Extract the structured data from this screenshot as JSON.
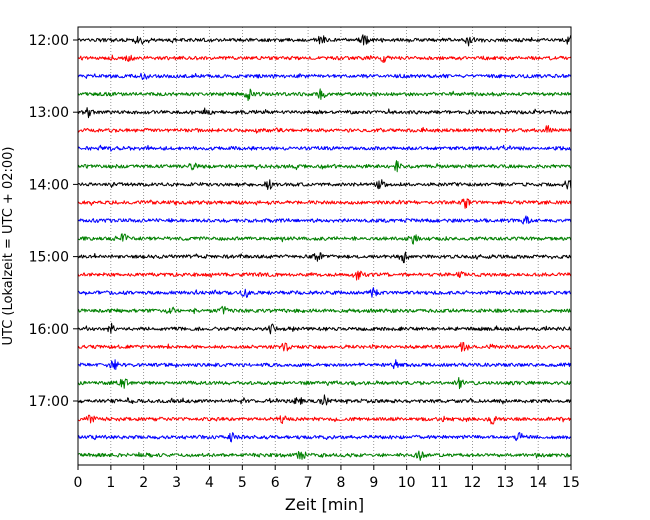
{
  "chart_data": {
    "type": "line",
    "xlabel": "Zeit  [min]",
    "ylabel": "UTC (Lokalzeit = UTC + 02:00)",
    "xlim": [
      0,
      15
    ],
    "x_ticks": [
      0,
      1,
      2,
      3,
      4,
      5,
      6,
      7,
      8,
      9,
      10,
      11,
      12,
      13,
      14,
      15
    ],
    "x_tick_labels": [
      "0",
      "1",
      "2",
      "3",
      "4",
      "5",
      "6",
      "7",
      "8",
      "9",
      "10",
      "11",
      "12",
      "13",
      "14",
      "15"
    ],
    "y_tick_labels": [
      "12:00",
      "13:00",
      "14:00",
      "15:00",
      "16:00",
      "17:00"
    ],
    "grid": "vertical dotted",
    "row_interval_min": 15,
    "series_colors": [
      "#000000",
      "#ff0000",
      "#0000ff",
      "#008000"
    ],
    "rows": [
      {
        "start": "12:00",
        "color": "#000000",
        "events": [
          1.9,
          7.4,
          8.7,
          11.9,
          15.0
        ]
      },
      {
        "start": "12:15",
        "color": "#ff0000",
        "events": [
          1.6,
          9.3
        ]
      },
      {
        "start": "12:30",
        "color": "#0000ff",
        "events": [
          2.0
        ]
      },
      {
        "start": "12:45",
        "color": "#008000",
        "events": [
          5.2,
          7.4
        ]
      },
      {
        "start": "13:00",
        "color": "#000000",
        "events": [
          0.3,
          3.9
        ]
      },
      {
        "start": "13:15",
        "color": "#ff0000",
        "events": [
          14.3
        ]
      },
      {
        "start": "13:30",
        "color": "#0000ff",
        "events": []
      },
      {
        "start": "13:45",
        "color": "#008000",
        "events": [
          3.5,
          9.7
        ]
      },
      {
        "start": "14:00",
        "color": "#000000",
        "events": [
          5.8,
          9.2,
          14.9
        ]
      },
      {
        "start": "14:15",
        "color": "#ff0000",
        "events": [
          11.8
        ]
      },
      {
        "start": "14:30",
        "color": "#0000ff",
        "events": [
          13.6
        ]
      },
      {
        "start": "14:45",
        "color": "#008000",
        "events": [
          1.4,
          10.2
        ]
      },
      {
        "start": "15:00",
        "color": "#000000",
        "events": [
          7.3,
          9.9
        ]
      },
      {
        "start": "15:15",
        "color": "#ff0000",
        "events": [
          8.5,
          11.6
        ]
      },
      {
        "start": "15:30",
        "color": "#0000ff",
        "events": [
          5.1,
          9.0
        ]
      },
      {
        "start": "15:45",
        "color": "#008000",
        "events": [
          2.8,
          4.4
        ]
      },
      {
        "start": "16:00",
        "color": "#000000",
        "events": [
          1.0,
          5.9
        ]
      },
      {
        "start": "16:15",
        "color": "#ff0000",
        "events": [
          6.3,
          11.7
        ]
      },
      {
        "start": "16:30",
        "color": "#0000ff",
        "events": [
          1.1,
          9.7
        ]
      },
      {
        "start": "16:45",
        "color": "#008000",
        "events": [
          1.4,
          11.6
        ]
      },
      {
        "start": "17:00",
        "color": "#000000",
        "events": [
          6.7,
          7.5
        ]
      },
      {
        "start": "17:15",
        "color": "#ff0000",
        "events": [
          0.4,
          6.2,
          12.6
        ]
      },
      {
        "start": "17:30",
        "color": "#0000ff",
        "events": [
          4.7,
          13.4
        ]
      },
      {
        "start": "17:45",
        "color": "#008000",
        "events": [
          6.8,
          10.4
        ]
      }
    ]
  }
}
